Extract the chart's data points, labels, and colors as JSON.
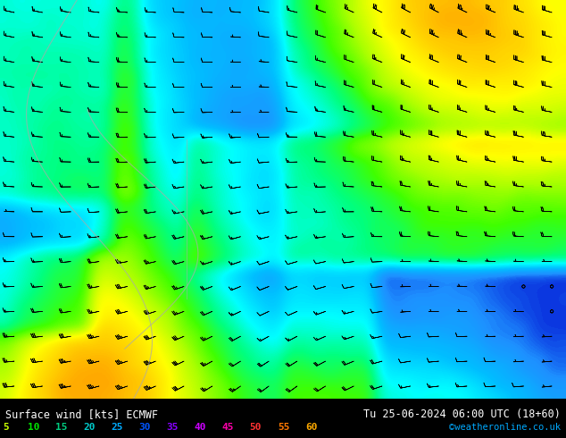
{
  "title_left": "Surface wind [kts] ECMWF",
  "title_right": "Tu 25-06-2024 06:00 UTC (18+60)",
  "credit": "©weatheronline.co.uk",
  "legend_values": [
    5,
    10,
    15,
    20,
    25,
    30,
    35,
    40,
    45,
    50,
    55,
    60
  ],
  "legend_colors": [
    "#a0ff00",
    "#00ff00",
    "#00e600",
    "#00cc00",
    "#00ffff",
    "#00bfff",
    "#0080ff",
    "#8000ff",
    "#ff00ff",
    "#ff0080",
    "#ff0000",
    "#ff8000"
  ],
  "colormap_colors": [
    "#00c8ff",
    "#00e0c8",
    "#80ff80",
    "#ffff00",
    "#ffa000",
    "#ff5000",
    "#ff0000"
  ],
  "wind_color_stops": [
    [
      0,
      "#0000cd"
    ],
    [
      5,
      "#00bfff"
    ],
    [
      10,
      "#00ffff"
    ],
    [
      15,
      "#00ff80"
    ],
    [
      20,
      "#80ff00"
    ],
    [
      25,
      "#ffff00"
    ],
    [
      30,
      "#ffa500"
    ],
    [
      35,
      "#ff6400"
    ],
    [
      40,
      "#ff0000"
    ],
    [
      45,
      "#cc00cc"
    ],
    [
      50,
      "#9900cc"
    ],
    [
      55,
      "#ff00ff"
    ],
    [
      60,
      "#ffffff"
    ]
  ],
  "bg_color": "#ffffff",
  "map_bg": "#c8e8ff",
  "fig_width": 6.34,
  "fig_height": 4.9,
  "dpi": 100,
  "bottom_bar_color": "#000000",
  "bottom_text_color": "#ffffff",
  "legend_label_colors": [
    "#c8ff00",
    "#00ff00",
    "#00cc00",
    "#00ffff",
    "#00bfff",
    "#0080ff",
    "#8000ff",
    "#ff00ff",
    "#ff0080",
    "#ff3232",
    "#ff6400",
    "#ff8c00"
  ]
}
